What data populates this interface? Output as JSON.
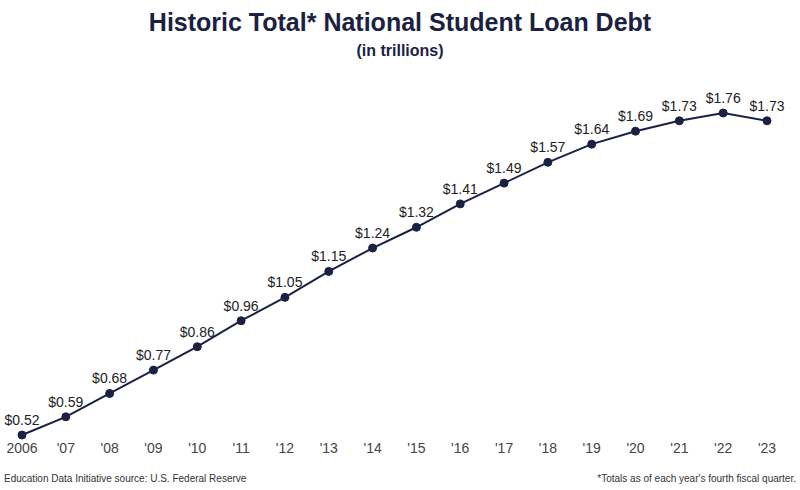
{
  "chart_data": {
    "type": "line",
    "title": "Historic Total* National Student Loan Debt",
    "subtitle": "(in trillions)",
    "categories": [
      "2006",
      "'07",
      "'08",
      "'09",
      "'10",
      "'11",
      "'12",
      "'13",
      "'14",
      "'15",
      "'16",
      "'17",
      "'18",
      "'19",
      "'20",
      "'21",
      "'22",
      "'23"
    ],
    "values": [
      0.52,
      0.59,
      0.68,
      0.77,
      0.86,
      0.96,
      1.05,
      1.15,
      1.24,
      1.32,
      1.41,
      1.49,
      1.57,
      1.64,
      1.69,
      1.73,
      1.76,
      1.73
    ],
    "value_labels": [
      "$0.52",
      "$0.59",
      "$0.68",
      "$0.77",
      "$0.86",
      "$0.96",
      "$1.05",
      "$1.15",
      "$1.24",
      "$1.32",
      "$1.41",
      "$1.49",
      "$1.57",
      "$1.64",
      "$1.69",
      "$1.73",
      "$1.76",
      "$1.73"
    ],
    "data_labels": true,
    "tick_labels": "x",
    "grid": false,
    "color": "#1b2142",
    "marker": "circle",
    "line_style": "solid",
    "source": "Education Data Initiative source: U.S. Federal Reserve",
    "footnote": "*Totals as of each year's fourth fiscal quarter."
  }
}
